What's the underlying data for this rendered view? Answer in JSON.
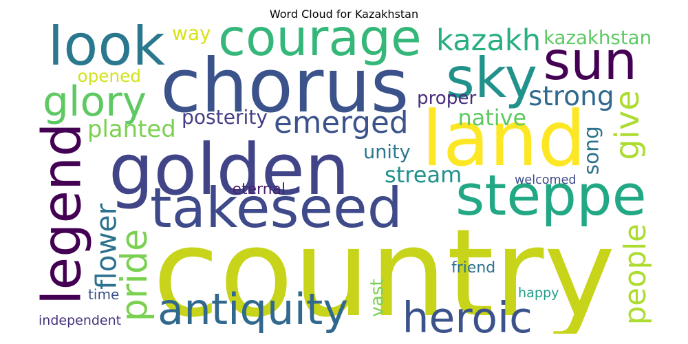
{
  "title": "Word Cloud for Kazakhstan",
  "words": [
    {
      "text": "country",
      "color": "#c7d41a"
    },
    {
      "text": "golden",
      "color": "#414487"
    },
    {
      "text": "chorus",
      "color": "#3b528b"
    },
    {
      "text": "land",
      "color": "#fde725"
    },
    {
      "text": "courage",
      "color": "#35b779"
    },
    {
      "text": "takeseed",
      "color": "#3e4a89"
    },
    {
      "text": "steppe",
      "color": "#22a884"
    },
    {
      "text": "legend",
      "color": "#440154"
    },
    {
      "text": "look",
      "color": "#2a788e"
    },
    {
      "text": "sun",
      "color": "#440154"
    },
    {
      "text": "sky",
      "color": "#21918c"
    },
    {
      "text": "heroic",
      "color": "#3b528b"
    },
    {
      "text": "antiquity",
      "color": "#31688e"
    },
    {
      "text": "emerged",
      "color": "#3b528b"
    },
    {
      "text": "glory",
      "color": "#5ec962"
    },
    {
      "text": "kazakh",
      "color": "#29af7f"
    },
    {
      "text": "strong",
      "color": "#31688e"
    },
    {
      "text": "give",
      "color": "#addc30"
    },
    {
      "text": "pride",
      "color": "#7ad151"
    },
    {
      "text": "people",
      "color": "#addc30"
    },
    {
      "text": "planted",
      "color": "#7ad151"
    },
    {
      "text": "stream",
      "color": "#21918c"
    },
    {
      "text": "native",
      "color": "#5ec962"
    },
    {
      "text": "song",
      "color": "#2c728e"
    },
    {
      "text": "flower",
      "color": "#2c728e"
    },
    {
      "text": "kazakhstan",
      "color": "#5ec962"
    },
    {
      "text": "opened",
      "color": "#d2e21b"
    },
    {
      "text": "posterity",
      "color": "#433e85"
    },
    {
      "text": "way",
      "color": "#d8e219"
    },
    {
      "text": "proper",
      "color": "#472d7b"
    },
    {
      "text": "unity",
      "color": "#2a788e"
    },
    {
      "text": "welcomed",
      "color": "#3e4a89"
    },
    {
      "text": "eternal",
      "color": "#481f70"
    },
    {
      "text": "friend",
      "color": "#2c728e"
    },
    {
      "text": "happy",
      "color": "#1f9e89"
    },
    {
      "text": "vast",
      "color": "#7ad151"
    },
    {
      "text": "time",
      "color": "#3b528b"
    },
    {
      "text": "independent",
      "color": "#46327e"
    }
  ]
}
